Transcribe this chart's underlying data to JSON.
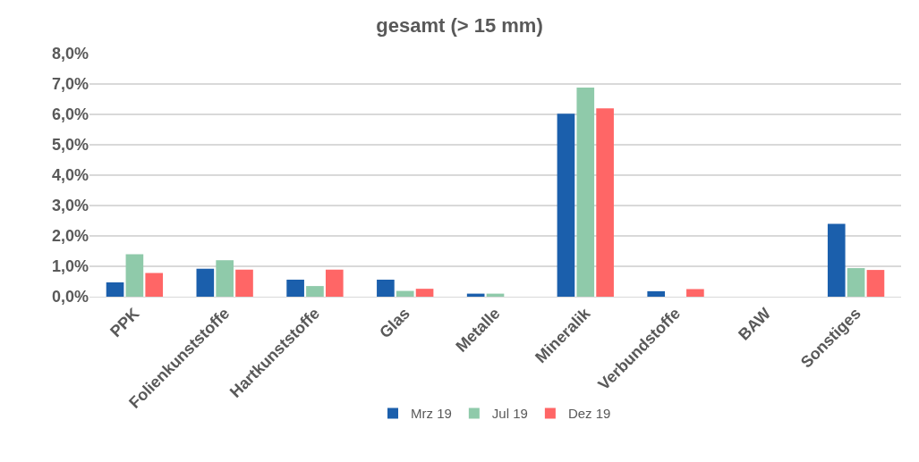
{
  "chart_data": {
    "type": "bar",
    "title": "gesamt (> 15 mm)",
    "categories": [
      "PPK",
      "Folienkunststoffe",
      "Hartkunststoffe",
      "Glas",
      "Metalle",
      "Mineralik",
      "Verbundstoffe",
      "BAW",
      "Sonstiges"
    ],
    "series": [
      {
        "name": "Mrz 19",
        "color": "#1b5fac",
        "values": [
          0.47,
          0.92,
          0.56,
          0.56,
          0.1,
          6.02,
          0.18,
          0,
          2.4
        ]
      },
      {
        "name": "Jul 19",
        "color": "#8fcaaa",
        "values": [
          1.4,
          1.2,
          0.35,
          0.19,
          0.1,
          6.88,
          0,
          0,
          0.94
        ]
      },
      {
        "name": "Dez 19",
        "color": "#ff6666",
        "values": [
          0.78,
          0.89,
          0.89,
          0.26,
          0,
          6.2,
          0.25,
          0,
          0.88
        ]
      }
    ],
    "ylim": [
      0,
      8
    ],
    "yticks": [
      {
        "value": 0,
        "label": "0,0%"
      },
      {
        "value": 1,
        "label": "1,0%"
      },
      {
        "value": 2,
        "label": "2,0%"
      },
      {
        "value": 3,
        "label": "3,0%"
      },
      {
        "value": 4,
        "label": "4,0%"
      },
      {
        "value": 5,
        "label": "5,0%"
      },
      {
        "value": 6,
        "label": "6,0%"
      },
      {
        "value": 7,
        "label": "7,0%"
      },
      {
        "value": 8,
        "label": "8,0%"
      }
    ],
    "grid": "y",
    "legend": "bottom"
  }
}
